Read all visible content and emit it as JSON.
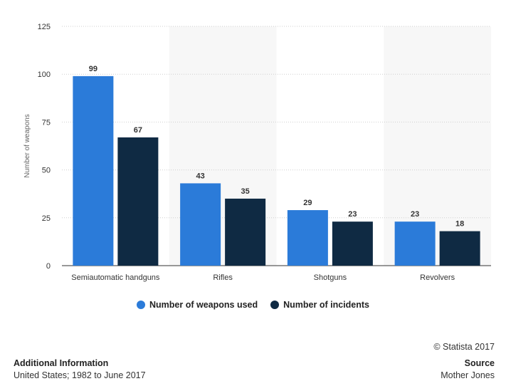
{
  "chart_data": {
    "type": "bar",
    "categories": [
      "Semiautomatic handguns",
      "Rifles",
      "Shotguns",
      "Revolvers"
    ],
    "series": [
      {
        "name": "Number of weapons used",
        "values": [
          99,
          43,
          29,
          23
        ],
        "color": "#2b7bd9"
      },
      {
        "name": "Number of incidents",
        "values": [
          67,
          35,
          23,
          18
        ],
        "color": "#0f2a43"
      }
    ],
    "ylabel": "Number of weapons",
    "ylim": [
      0,
      125
    ],
    "yticks": [
      0,
      25,
      50,
      75,
      100,
      125
    ],
    "grid": true,
    "legend_position": "bottom"
  },
  "copyright": "© Statista 2017",
  "additional_info": {
    "heading": "Additional Information",
    "text": "United States; 1982 to June 2017"
  },
  "source": {
    "heading": "Source",
    "text": "Mother Jones"
  }
}
